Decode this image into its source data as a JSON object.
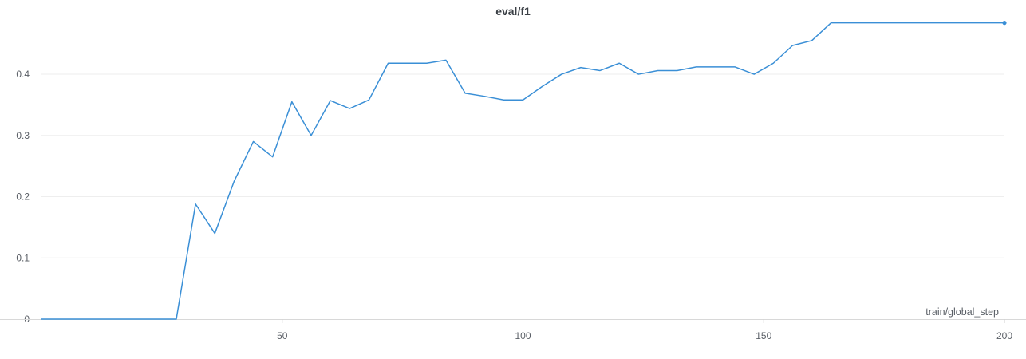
{
  "chart_data": {
    "type": "line",
    "title": "eval/f1",
    "xlabel": "train/global_step",
    "ylabel": "",
    "xlim": [
      0,
      200
    ],
    "ylim": [
      0,
      0.49
    ],
    "x_ticks": [
      50,
      100,
      150,
      200
    ],
    "y_ticks": [
      0,
      0.1,
      0.2,
      0.3,
      0.4
    ],
    "x_tick_labels": [
      "50",
      "100",
      "150",
      "200"
    ],
    "y_tick_labels": [
      "0",
      "0.1",
      "0.2",
      "0.3",
      "0.4"
    ],
    "grid": true,
    "colors": {
      "line": "#3a8fd6",
      "grid": "#eeeeee",
      "axis": "#d8d8d8"
    },
    "series": [
      {
        "x": [
          0,
          4,
          8,
          12,
          16,
          20,
          24,
          28,
          32,
          36,
          40,
          44,
          48,
          52,
          56,
          60,
          64,
          68,
          72,
          76,
          80,
          84,
          88,
          92,
          96,
          100,
          104,
          108,
          112,
          116,
          120,
          124,
          128,
          132,
          136,
          140,
          144,
          148,
          152,
          156,
          160,
          164,
          168,
          172,
          176,
          180,
          184,
          188,
          192,
          196,
          200
        ],
        "y": [
          0,
          0,
          0,
          0,
          0,
          0,
          0,
          0,
          0.188,
          0.14,
          0.225,
          0.29,
          0.265,
          0.355,
          0.3,
          0.357,
          0.344,
          0.358,
          0.418,
          0.418,
          0.418,
          0.423,
          0.369,
          0.364,
          0.358,
          0.358,
          0.38,
          0.4,
          0.411,
          0.406,
          0.418,
          0.4,
          0.406,
          0.406,
          0.412,
          0.412,
          0.412,
          0.4,
          0.418,
          0.447,
          0.455,
          0.484,
          0.484,
          0.484,
          0.484,
          0.484,
          0.484,
          0.484,
          0.484,
          0.484,
          0.484
        ]
      }
    ]
  }
}
